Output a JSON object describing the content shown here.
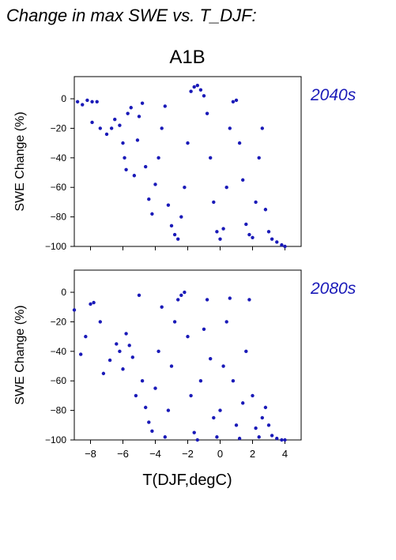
{
  "figure": {
    "title": "Change in max SWE vs. T_DJF:",
    "scenario": "A1B",
    "xlabel": "T(DJF,degC)",
    "point_color": "#1a1ab8"
  },
  "chart_data": [
    {
      "type": "scatter",
      "period": "2040s",
      "ylabel": "SWE Change (%)",
      "xlabel": "T(DJF,degC)",
      "xlim": [
        -9,
        5
      ],
      "ylim": [
        -100,
        15
      ],
      "xticks": [
        -8,
        -6,
        -4,
        -2,
        0,
        2,
        4
      ],
      "yticks": [
        0,
        -20,
        -40,
        -60,
        -80,
        -100
      ],
      "grid": false,
      "points": [
        [
          -8.8,
          -2
        ],
        [
          -8.5,
          -4
        ],
        [
          -8.2,
          -1
        ],
        [
          -7.9,
          -2
        ],
        [
          -7.6,
          -2
        ],
        [
          -7.9,
          -16
        ],
        [
          -7.4,
          -20
        ],
        [
          -7.0,
          -24
        ],
        [
          -6.7,
          -20
        ],
        [
          -6.5,
          -14
        ],
        [
          -6.2,
          -18
        ],
        [
          -6.0,
          -30
        ],
        [
          -5.9,
          -40
        ],
        [
          -5.7,
          -10
        ],
        [
          -5.5,
          -6
        ],
        [
          -5.8,
          -48
        ],
        [
          -5.3,
          -52
        ],
        [
          -5.1,
          -28
        ],
        [
          -5.0,
          -12
        ],
        [
          -4.8,
          -3
        ],
        [
          -4.6,
          -46
        ],
        [
          -4.4,
          -68
        ],
        [
          -4.2,
          -78
        ],
        [
          -4.0,
          -58
        ],
        [
          -3.8,
          -40
        ],
        [
          -3.6,
          -20
        ],
        [
          -3.4,
          -5
        ],
        [
          -3.2,
          -72
        ],
        [
          -3.0,
          -86
        ],
        [
          -2.8,
          -92
        ],
        [
          -2.6,
          -95
        ],
        [
          -2.4,
          -80
        ],
        [
          -2.2,
          -60
        ],
        [
          -2.0,
          -30
        ],
        [
          -1.8,
          5
        ],
        [
          -1.6,
          8
        ],
        [
          -1.4,
          9
        ],
        [
          -1.2,
          6
        ],
        [
          -1.0,
          2
        ],
        [
          -0.8,
          -10
        ],
        [
          -0.6,
          -40
        ],
        [
          -0.4,
          -70
        ],
        [
          -0.2,
          -90
        ],
        [
          0.0,
          -95
        ],
        [
          0.2,
          -88
        ],
        [
          0.4,
          -60
        ],
        [
          0.6,
          -20
        ],
        [
          0.8,
          -2
        ],
        [
          1.0,
          -1
        ],
        [
          1.2,
          -30
        ],
        [
          1.4,
          -55
        ],
        [
          1.6,
          -85
        ],
        [
          1.8,
          -92
        ],
        [
          2.0,
          -94
        ],
        [
          2.2,
          -70
        ],
        [
          2.4,
          -40
        ],
        [
          2.6,
          -20
        ],
        [
          2.8,
          -75
        ],
        [
          3.0,
          -90
        ],
        [
          3.2,
          -95
        ],
        [
          3.5,
          -97
        ],
        [
          3.8,
          -99
        ],
        [
          4.0,
          -100
        ]
      ]
    },
    {
      "type": "scatter",
      "period": "2080s",
      "ylabel": "SWE Change (%)",
      "xlabel": "T(DJF,degC)",
      "xlim": [
        -9,
        5
      ],
      "ylim": [
        -100,
        15
      ],
      "xticks": [
        -8,
        -6,
        -4,
        -2,
        0,
        2,
        4
      ],
      "yticks": [
        0,
        -20,
        -40,
        -60,
        -80,
        -100
      ],
      "grid": false,
      "points": [
        [
          -9.0,
          -12
        ],
        [
          -8.6,
          -42
        ],
        [
          -8.3,
          -30
        ],
        [
          -8.0,
          -8
        ],
        [
          -7.8,
          -7
        ],
        [
          -7.4,
          -20
        ],
        [
          -7.2,
          -55
        ],
        [
          -6.8,
          -46
        ],
        [
          -6.4,
          -35
        ],
        [
          -6.2,
          -40
        ],
        [
          -6.0,
          -52
        ],
        [
          -5.8,
          -28
        ],
        [
          -5.6,
          -36
        ],
        [
          -5.4,
          -44
        ],
        [
          -5.2,
          -70
        ],
        [
          -5.0,
          -2
        ],
        [
          -4.8,
          -60
        ],
        [
          -4.6,
          -78
        ],
        [
          -4.4,
          -88
        ],
        [
          -4.2,
          -94
        ],
        [
          -4.0,
          -65
        ],
        [
          -3.8,
          -40
        ],
        [
          -3.6,
          -10
        ],
        [
          -3.4,
          -98
        ],
        [
          -3.2,
          -80
        ],
        [
          -3.0,
          -50
        ],
        [
          -2.8,
          -20
        ],
        [
          -2.6,
          -5
        ],
        [
          -2.4,
          -2
        ],
        [
          -2.2,
          0
        ],
        [
          -2.0,
          -30
        ],
        [
          -1.8,
          -70
        ],
        [
          -1.6,
          -95
        ],
        [
          -1.4,
          -100
        ],
        [
          -1.2,
          -60
        ],
        [
          -1.0,
          -25
        ],
        [
          -0.8,
          -5
        ],
        [
          -0.6,
          -45
        ],
        [
          -0.4,
          -85
        ],
        [
          -0.2,
          -98
        ],
        [
          0.0,
          -80
        ],
        [
          0.2,
          -50
        ],
        [
          0.4,
          -20
        ],
        [
          0.6,
          -4
        ],
        [
          0.8,
          -60
        ],
        [
          1.0,
          -90
        ],
        [
          1.2,
          -99
        ],
        [
          1.4,
          -75
        ],
        [
          1.6,
          -40
        ],
        [
          1.8,
          -5
        ],
        [
          2.0,
          -70
        ],
        [
          2.2,
          -92
        ],
        [
          2.4,
          -98
        ],
        [
          2.6,
          -85
        ],
        [
          2.8,
          -78
        ],
        [
          3.0,
          -90
        ],
        [
          3.2,
          -97
        ],
        [
          3.5,
          -99
        ],
        [
          3.8,
          -100
        ],
        [
          4.0,
          -100
        ]
      ]
    }
  ]
}
